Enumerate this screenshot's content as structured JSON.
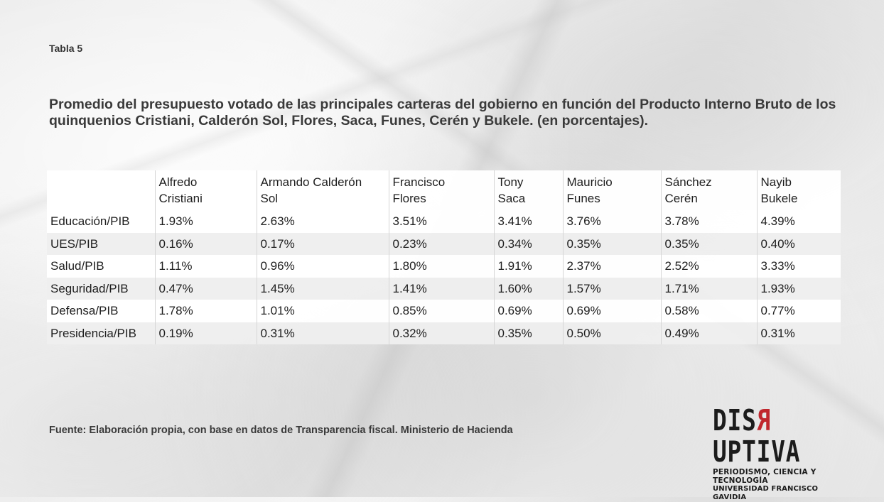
{
  "label": "Tabla 5",
  "title": "Promedio del presupuesto votado de las principales carteras del gobierno en función del Producto Interno Bruto de los quinquenios Cristiani, Calderón Sol, Flores, Saca, Funes, Cerén y Bukele. (en porcentajes).",
  "source": "Fuente: Elaboración propia, con base en datos de Transparencia fiscal. Ministerio de Hacienda",
  "logo": {
    "word_pre": "DIS",
    "word_r": "R",
    "word_post": "UPTIVA",
    "line1": "PERIODISMO, CIENCIA Y TECNOLOGÍA",
    "line2": "UNIVERSIDAD FRANCISCO GAVIDIA"
  },
  "chart_data": {
    "type": "table",
    "columns": [
      {
        "line1": "Alfredo",
        "line2": "Cristiani"
      },
      {
        "line1": "Armando Calderón",
        "line2": "Sol"
      },
      {
        "line1": "Francisco",
        "line2": "Flores"
      },
      {
        "line1": "Tony",
        "line2": "Saca"
      },
      {
        "line1": "Mauricio",
        "line2": "Funes"
      },
      {
        "line1": "Sánchez",
        "line2": "Cerén"
      },
      {
        "line1": "Nayib",
        "line2": "Bukele"
      }
    ],
    "rows": [
      {
        "label": "Educación/PIB",
        "values": [
          "1.93%",
          "2.63%",
          "3.51%",
          "3.41%",
          "3.76%",
          "3.78%",
          "4.39%"
        ]
      },
      {
        "label": "UES/PIB",
        "values": [
          "0.16%",
          "0.17%",
          "0.23%",
          "0.34%",
          "0.35%",
          "0.35%",
          "0.40%"
        ]
      },
      {
        "label": "Salud/PIB",
        "values": [
          "1.11%",
          "0.96%",
          "1.80%",
          "1.91%",
          "2.37%",
          "2.52%",
          "3.33%"
        ]
      },
      {
        "label": "Seguridad/PIB",
        "values": [
          "0.47%",
          "1.45%",
          "1.41%",
          "1.60%",
          "1.57%",
          "1.71%",
          "1.93%"
        ]
      },
      {
        "label": "Defensa/PIB",
        "values": [
          "1.78%",
          "1.01%",
          "0.85%",
          "0.69%",
          "0.69%",
          "0.58%",
          "0.77%"
        ]
      },
      {
        "label": "Presidencia/PIB",
        "values": [
          "0.19%",
          "0.31%",
          "0.32%",
          "0.35%",
          "0.50%",
          "0.49%",
          "0.31%"
        ]
      }
    ]
  }
}
